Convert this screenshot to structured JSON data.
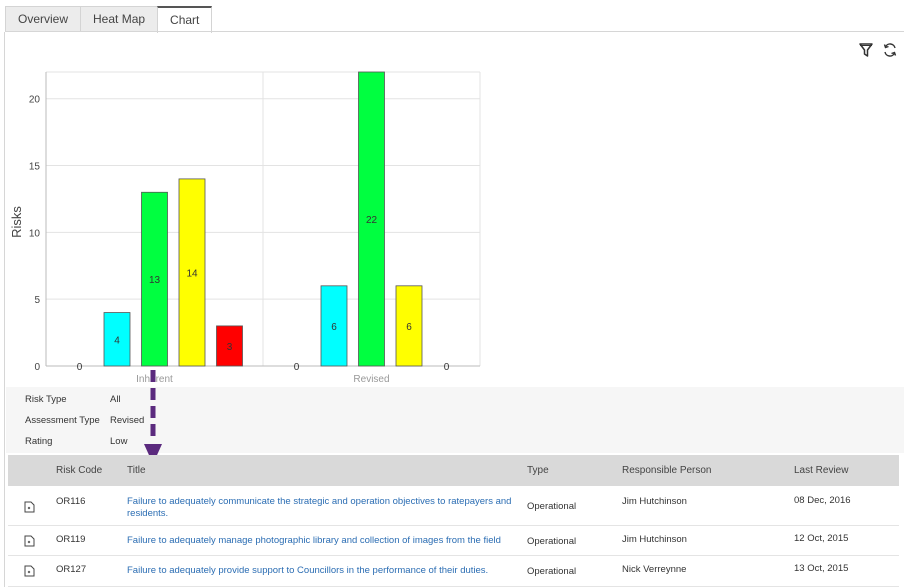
{
  "tabs": [
    {
      "label": "Overview"
    },
    {
      "label": "Heat Map"
    },
    {
      "label": "Chart"
    }
  ],
  "active_tab": "Chart",
  "toolbar": {
    "filter_icon": "filter-icon",
    "refresh_icon": "refresh-icon"
  },
  "chart_data": {
    "type": "bar",
    "categories": [
      "Inherent",
      "Revised"
    ],
    "series": [
      {
        "values": [
          0,
          0
        ],
        "color": "#cccccc"
      },
      {
        "values": [
          4,
          6
        ],
        "color": "#00ffff"
      },
      {
        "values": [
          13,
          22
        ],
        "color": "#00ff40"
      },
      {
        "values": [
          14,
          6
        ],
        "color": "#ffff00"
      },
      {
        "values": [
          3,
          0
        ],
        "color": "#ff0000"
      }
    ],
    "ylabel": "Risks",
    "xlabel": "",
    "ylim": [
      0,
      22
    ],
    "yticks": [
      0,
      5,
      10,
      15,
      20
    ],
    "grid": true
  },
  "filters": [
    {
      "label": "Risk Type",
      "value": "All"
    },
    {
      "label": "Assessment Type",
      "value": "Revised"
    },
    {
      "label": "Rating",
      "value": "Low"
    }
  ],
  "table": {
    "headers": [
      "Risk Code",
      "Title",
      "Type",
      "Responsible Person",
      "Last Review"
    ],
    "rows": [
      {
        "code": "OR116",
        "title_line1": "Failure to adequately communicate the strategic and operation objectives to ratepayers and",
        "title_line2": "residents.",
        "type": "Operational",
        "person": "Jim Hutchinson",
        "review": "08 Dec, 2016"
      },
      {
        "code": "OR119",
        "title_line1": "Failure to adequately manage photographic library and collection of images from the field",
        "title_line2": "",
        "type": "Operational",
        "person": "Jim Hutchinson",
        "review": "12 Oct, 2015"
      },
      {
        "code": "OR127",
        "title_line1": "Failure to adequately provide support to Councillors in the performance of their duties.",
        "title_line2": "",
        "type": "Operational",
        "person": "Nick Verreynne",
        "review": "13 Oct, 2015"
      }
    ]
  },
  "colors": {
    "link": "#2b6db3",
    "annotation_arrow": "#5b2a7e"
  }
}
